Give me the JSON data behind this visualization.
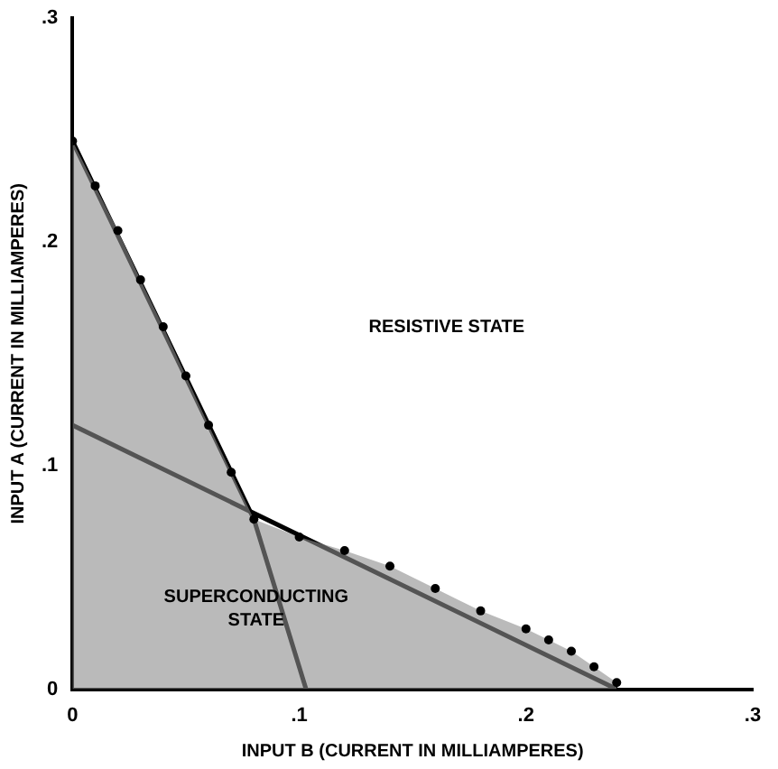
{
  "chart_data": {
    "type": "line",
    "xlabel": "INPUT B (CURRENT IN MILLIAMPERES)",
    "ylabel": "INPUT A (CURRENT IN MILLIAMPERES)",
    "xlim": [
      0,
      0.3
    ],
    "ylim": [
      0,
      0.3
    ],
    "xticks": [
      0,
      {
        "value": 0.1,
        "label": ".1"
      },
      {
        "value": 0.2,
        "label": ".2"
      },
      {
        "value": 0.3,
        "label": ".3"
      }
    ],
    "yticks": [
      0,
      {
        "value": 0.1,
        "label": ".1"
      },
      {
        "value": 0.2,
        "label": ".2"
      },
      {
        "value": 0.3,
        "label": ".3"
      }
    ],
    "grid": false,
    "legend": false,
    "series": [
      {
        "type": "area",
        "color": "#8c8c8c",
        "marker": "circle",
        "x": [
          0,
          0.01,
          0.02,
          0.03,
          0.04,
          0.05,
          0.06,
          0.07,
          0.08,
          0.1,
          0.12,
          0.14,
          0.16,
          0.18,
          0.2,
          0.21,
          0.22,
          0.23,
          0.24
        ],
        "values": [
          0.245,
          0.225,
          0.205,
          0.183,
          0.162,
          0.14,
          0.118,
          0.097,
          0.076,
          0.068,
          0.062,
          0.055,
          0.045,
          0.035,
          0.027,
          0.022,
          0.017,
          0.01,
          0.003
        ]
      },
      {
        "type": "line",
        "color": "#000000",
        "x": [
          0,
          0.08,
          0.103
        ],
        "values": [
          0.245,
          0.076,
          0
        ]
      },
      {
        "type": "line",
        "color": "#000000",
        "x": [
          0,
          0.24
        ],
        "values": [
          0.118,
          0
        ]
      }
    ],
    "annotations": [
      "RESISTIVE STATE",
      "SUPERCONDUCTING STATE"
    ]
  }
}
